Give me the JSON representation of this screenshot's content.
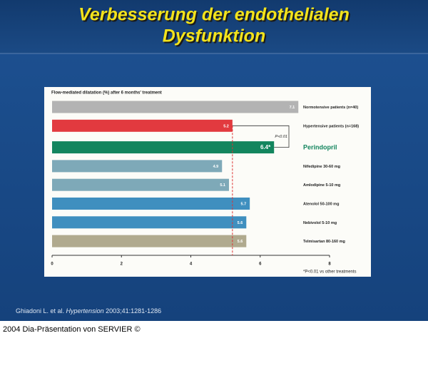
{
  "chart_data": {
    "type": "bar",
    "orientation": "horizontal",
    "slide_title": [
      "Verbesserung der endothelialen",
      "Dysfunktion"
    ],
    "title": "Flow-mediated dilatation (%) after 6 months' treatment",
    "categories": [
      "Normotensive patients (n=40)",
      "Hypertensive patients (n=168)",
      "Perindopril",
      "Nifedipine 30-60 mg",
      "Amlodipine 5-10 mg",
      "Atenolol 50-100 mg",
      "Nebivolol 5-10 mg",
      "Telmisartan 80-160 mg"
    ],
    "values": [
      7.1,
      5.2,
      6.4,
      4.9,
      5.1,
      5.7,
      5.6,
      5.6
    ],
    "value_labels": [
      "7.1",
      "5.2",
      "6.4*",
      "4.9",
      "5.1",
      "5.7",
      "5.6",
      "5.6"
    ],
    "colors": [
      "#b3b3b3",
      "#e23a3f",
      "#13855e",
      "#7ea9b8",
      "#7ea9b8",
      "#3f8fbf",
      "#3f8fbf",
      "#b0aa8e"
    ],
    "xlim": [
      0,
      8
    ],
    "xticks": [
      0,
      2,
      4,
      6,
      8
    ],
    "annotation": "P<0.01",
    "footnote": "*P<0.01 vs other treatments",
    "citation": {
      "authors": "Ghiadoni L. et al. ",
      "journal": "Hypertension",
      "details": " 2003;41:1281-1286"
    },
    "footer": "2004 Dia-Präsentation von SERVIER ©"
  }
}
